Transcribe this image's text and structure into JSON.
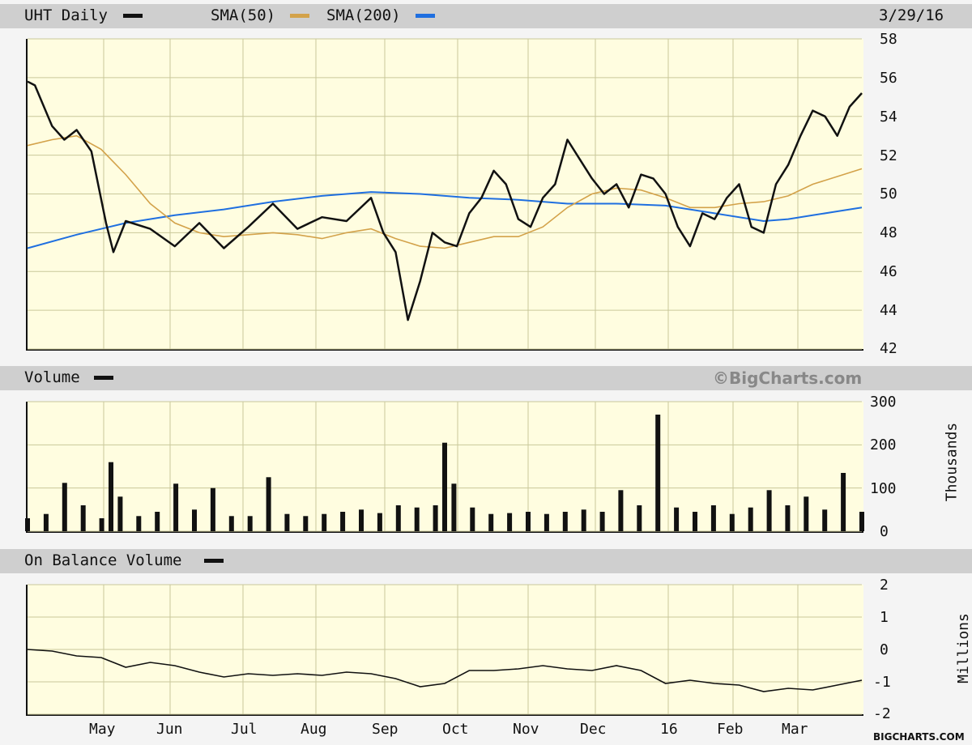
{
  "chart_data": [
    {
      "type": "line",
      "title": "UHT Daily",
      "date": "3/29/16",
      "legend": [
        "UHT Daily",
        "SMA(50)",
        "SMA(200)"
      ],
      "colors": {
        "price": "#111111",
        "sma50": "#d3a24a",
        "sma200": "#1f6fe0"
      },
      "x_labels": [
        "May",
        "Jun",
        "Jul",
        "Aug",
        "Sep",
        "Oct",
        "Nov",
        "Dec",
        "16",
        "Feb",
        "Mar"
      ],
      "y_ticks": [
        42,
        44,
        46,
        48,
        50,
        52,
        54,
        56,
        58
      ],
      "ylim": [
        42,
        58
      ],
      "series": [
        {
          "name": "UHT Daily",
          "values": [
            [
              0,
              55.8
            ],
            [
              0.3,
              55.6
            ],
            [
              1,
              53.5
            ],
            [
              1.5,
              52.8
            ],
            [
              2,
              53.3
            ],
            [
              2.6,
              52.2
            ],
            [
              3.2,
              48.5
            ],
            [
              3.5,
              47.0
            ],
            [
              4,
              48.6
            ],
            [
              5,
              48.2
            ],
            [
              6,
              47.3
            ],
            [
              7,
              48.5
            ],
            [
              8,
              47.2
            ],
            [
              9,
              48.3
            ],
            [
              10,
              49.5
            ],
            [
              11,
              48.2
            ],
            [
              12,
              48.8
            ],
            [
              13,
              48.6
            ],
            [
              14,
              49.8
            ],
            [
              14.5,
              48.0
            ],
            [
              15,
              47.0
            ],
            [
              15.5,
              43.5
            ],
            [
              16,
              45.5
            ],
            [
              16.5,
              48.0
            ],
            [
              17,
              47.5
            ],
            [
              17.5,
              47.3
            ],
            [
              18,
              49.0
            ],
            [
              18.5,
              49.8
            ],
            [
              19,
              51.2
            ],
            [
              19.5,
              50.5
            ],
            [
              20,
              48.7
            ],
            [
              20.5,
              48.3
            ],
            [
              21,
              49.8
            ],
            [
              21.5,
              50.5
            ],
            [
              22,
              52.8
            ],
            [
              22.5,
              51.8
            ],
            [
              23,
              50.8
            ],
            [
              23.5,
              50.0
            ],
            [
              24,
              50.5
            ],
            [
              24.5,
              49.3
            ],
            [
              25,
              51.0
            ],
            [
              25.5,
              50.8
            ],
            [
              26,
              50.0
            ],
            [
              26.5,
              48.3
            ],
            [
              27,
              47.3
            ],
            [
              27.5,
              49.0
            ],
            [
              28,
              48.7
            ],
            [
              28.5,
              49.8
            ],
            [
              29,
              50.5
            ],
            [
              29.5,
              48.3
            ],
            [
              30,
              48.0
            ],
            [
              30.5,
              50.5
            ],
            [
              31,
              51.5
            ],
            [
              31.5,
              53.0
            ],
            [
              32,
              54.3
            ],
            [
              32.5,
              54.0
            ],
            [
              33,
              53.0
            ],
            [
              33.5,
              54.5
            ],
            [
              34,
              55.2
            ]
          ]
        },
        {
          "name": "SMA(50)",
          "values": [
            [
              0,
              52.5
            ],
            [
              1,
              52.8
            ],
            [
              2,
              53.0
            ],
            [
              3,
              52.3
            ],
            [
              4,
              51.0
            ],
            [
              5,
              49.5
            ],
            [
              6,
              48.5
            ],
            [
              7,
              48.0
            ],
            [
              8,
              47.8
            ],
            [
              9,
              47.9
            ],
            [
              10,
              48.0
            ],
            [
              11,
              47.9
            ],
            [
              12,
              47.7
            ],
            [
              13,
              48.0
            ],
            [
              14,
              48.2
            ],
            [
              15,
              47.7
            ],
            [
              16,
              47.3
            ],
            [
              17,
              47.2
            ],
            [
              18,
              47.5
            ],
            [
              19,
              47.8
            ],
            [
              20,
              47.8
            ],
            [
              21,
              48.3
            ],
            [
              22,
              49.3
            ],
            [
              23,
              50.0
            ],
            [
              24,
              50.3
            ],
            [
              25,
              50.2
            ],
            [
              26,
              49.8
            ],
            [
              27,
              49.3
            ],
            [
              28,
              49.3
            ],
            [
              29,
              49.5
            ],
            [
              30,
              49.6
            ],
            [
              31,
              49.9
            ],
            [
              32,
              50.5
            ],
            [
              33,
              50.9
            ],
            [
              34,
              51.3
            ]
          ]
        },
        {
          "name": "SMA(200)",
          "values": [
            [
              0,
              47.2
            ],
            [
              2,
              47.9
            ],
            [
              4,
              48.5
            ],
            [
              6,
              48.9
            ],
            [
              8,
              49.2
            ],
            [
              10,
              49.6
            ],
            [
              12,
              49.9
            ],
            [
              14,
              50.1
            ],
            [
              16,
              50.0
            ],
            [
              18,
              49.8
            ],
            [
              20,
              49.7
            ],
            [
              22,
              49.5
            ],
            [
              24,
              49.5
            ],
            [
              26,
              49.4
            ],
            [
              28,
              49.0
            ],
            [
              30,
              48.6
            ],
            [
              31,
              48.7
            ],
            [
              32,
              48.9
            ],
            [
              33,
              49.1
            ],
            [
              34,
              49.3
            ]
          ]
        }
      ]
    },
    {
      "type": "bar",
      "title": "Volume",
      "copyright": "©BigCharts.com",
      "ylabel": "Thousands",
      "y_ticks": [
        0,
        100,
        200,
        300
      ],
      "ylim": [
        0,
        300
      ],
      "color": "#111111",
      "series": [
        {
          "name": "Volume",
          "values": [
            [
              0,
              30
            ],
            [
              1,
              40
            ],
            [
              2,
              112
            ],
            [
              3,
              60
            ],
            [
              4,
              30
            ],
            [
              4.5,
              160
            ],
            [
              5,
              80
            ],
            [
              6,
              35
            ],
            [
              7,
              45
            ],
            [
              8,
              110
            ],
            [
              9,
              50
            ],
            [
              10,
              100
            ],
            [
              11,
              35
            ],
            [
              12,
              35
            ],
            [
              13,
              125
            ],
            [
              14,
              40
            ],
            [
              15,
              35
            ],
            [
              16,
              40
            ],
            [
              17,
              45
            ],
            [
              18,
              50
            ],
            [
              19,
              42
            ],
            [
              20,
              60
            ],
            [
              21,
              55
            ],
            [
              22,
              60
            ],
            [
              22.5,
              205
            ],
            [
              23,
              110
            ],
            [
              24,
              55
            ],
            [
              25,
              40
            ],
            [
              26,
              42
            ],
            [
              27,
              45
            ],
            [
              28,
              40
            ],
            [
              29,
              45
            ],
            [
              30,
              50
            ],
            [
              31,
              45
            ],
            [
              32,
              95
            ],
            [
              33,
              60
            ],
            [
              34,
              270
            ],
            [
              35,
              55
            ],
            [
              36,
              45
            ],
            [
              37,
              60
            ],
            [
              38,
              40
            ],
            [
              39,
              55
            ],
            [
              40,
              95
            ],
            [
              41,
              60
            ],
            [
              42,
              80
            ],
            [
              43,
              50
            ],
            [
              44,
              135
            ],
            [
              45,
              45
            ]
          ]
        }
      ]
    },
    {
      "type": "line",
      "title": "On Balance Volume",
      "ylabel": "Millions",
      "y_ticks": [
        -2,
        -1,
        0,
        1,
        2
      ],
      "ylim": [
        -2,
        2
      ],
      "footer": "BIGCHARTS.COM",
      "series": [
        {
          "name": "On Balance Volume",
          "values": [
            [
              0,
              0.0
            ],
            [
              1,
              -0.05
            ],
            [
              2,
              -0.2
            ],
            [
              3,
              -0.25
            ],
            [
              4,
              -0.55
            ],
            [
              5,
              -0.4
            ],
            [
              6,
              -0.5
            ],
            [
              7,
              -0.7
            ],
            [
              8,
              -0.85
            ],
            [
              9,
              -0.75
            ],
            [
              10,
              -0.8
            ],
            [
              11,
              -0.75
            ],
            [
              12,
              -0.8
            ],
            [
              13,
              -0.7
            ],
            [
              14,
              -0.75
            ],
            [
              15,
              -0.9
            ],
            [
              16,
              -1.15
            ],
            [
              17,
              -1.05
            ],
            [
              18,
              -0.65
            ],
            [
              19,
              -0.65
            ],
            [
              20,
              -0.6
            ],
            [
              21,
              -0.5
            ],
            [
              22,
              -0.6
            ],
            [
              23,
              -0.65
            ],
            [
              24,
              -0.5
            ],
            [
              25,
              -0.65
            ],
            [
              26,
              -1.05
            ],
            [
              27,
              -0.95
            ],
            [
              28,
              -1.05
            ],
            [
              29,
              -1.1
            ],
            [
              30,
              -1.3
            ],
            [
              31,
              -1.2
            ],
            [
              32,
              -1.25
            ],
            [
              33,
              -1.1
            ],
            [
              34,
              -0.95
            ]
          ]
        }
      ]
    }
  ]
}
